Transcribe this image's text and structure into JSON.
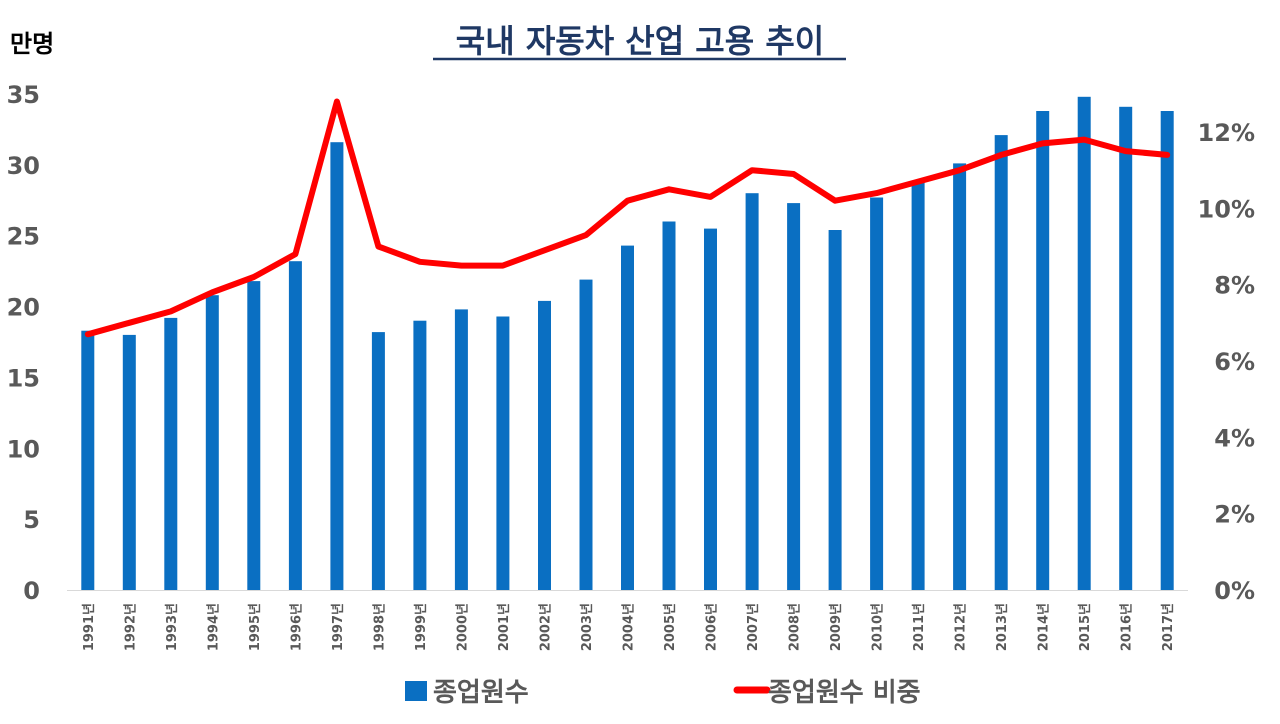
{
  "chart_data": {
    "type": "bar",
    "title": "국내 자동차 산업 고용 추이",
    "unit_left": "만명",
    "categories": [
      "1991년",
      "1992년",
      "1993년",
      "1994년",
      "1995년",
      "1996년",
      "1997년",
      "1998년",
      "1999년",
      "2000년",
      "2001년",
      "2002년",
      "2003년",
      "2004년",
      "2005년",
      "2006년",
      "2007년",
      "2008년",
      "2009년",
      "2010년",
      "2011년",
      "2012년",
      "2013년",
      "2014년",
      "2015년",
      "2016년",
      "2017년"
    ],
    "series": [
      {
        "name": "종업원수",
        "type": "bar",
        "axis": "left",
        "color": "#0a6fc2",
        "values": [
          18.3,
          18.0,
          19.2,
          20.8,
          21.8,
          23.2,
          31.6,
          18.2,
          19.0,
          19.8,
          19.3,
          20.4,
          21.9,
          24.3,
          26.0,
          25.5,
          28.0,
          27.3,
          25.4,
          27.7,
          28.8,
          30.1,
          32.1,
          33.8,
          34.8,
          34.1,
          33.8
        ]
      },
      {
        "name": "종업원수 비중",
        "type": "line",
        "axis": "right",
        "color": "#ff0000",
        "values": [
          6.7,
          7.0,
          7.3,
          7.8,
          8.2,
          8.8,
          12.8,
          9.0,
          8.6,
          8.5,
          8.5,
          8.9,
          9.3,
          10.2,
          10.5,
          10.3,
          11.0,
          10.9,
          10.2,
          10.4,
          10.7,
          11.0,
          11.4,
          11.7,
          11.8,
          11.5,
          11.4
        ]
      }
    ],
    "y_left": {
      "min": 0,
      "max": 35,
      "ticks": [
        0,
        5,
        10,
        15,
        20,
        25,
        30,
        35
      ]
    },
    "y_right": {
      "min": 0,
      "max": 13,
      "ticks": [
        0,
        2,
        4,
        6,
        8,
        10,
        12
      ],
      "tick_labels": [
        "0%",
        "2%",
        "4%",
        "6%",
        "8%",
        "10%",
        "12%"
      ]
    },
    "legend_position": "bottom",
    "grid": false
  }
}
